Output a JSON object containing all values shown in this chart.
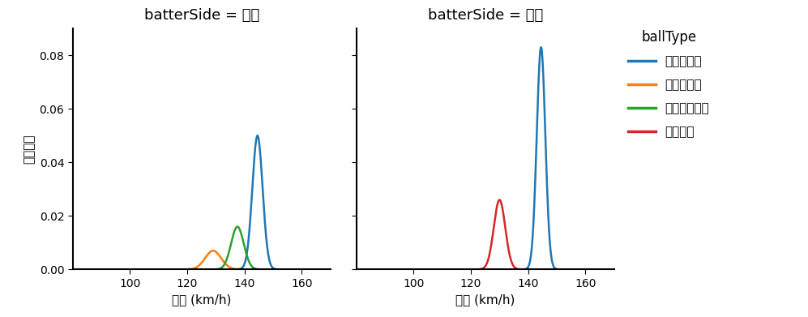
{
  "title_right": "batterSide = 右打",
  "title_left": "batterSide = 左打",
  "ylabel": "確率密度",
  "xlabel": "球速 (km/h)",
  "legend_title": "ballType",
  "legend_labels": [
    "ストレート",
    "スライダー",
    "カットボール",
    "フォーク"
  ],
  "colors": [
    "#1f77b4",
    "#ff7f0e",
    "#2ca02c",
    "#d62728"
  ],
  "xlim": [
    80,
    170
  ],
  "ylim": [
    0,
    0.09
  ],
  "xticks": [
    100,
    120,
    140,
    160
  ],
  "yticks": [
    0.0,
    0.02,
    0.04,
    0.06,
    0.08
  ],
  "right_curves": [
    {
      "mean": 144.5,
      "std": 1.8,
      "peak": 0.05,
      "color_idx": 0
    },
    {
      "mean": 129.0,
      "std": 2.8,
      "peak": 0.007,
      "color_idx": 1
    },
    {
      "mean": 137.5,
      "std": 2.2,
      "peak": 0.016,
      "color_idx": 2
    }
  ],
  "left_curves": [
    {
      "mean": 144.5,
      "std": 1.5,
      "peak": 0.083,
      "color_idx": 0
    },
    {
      "mean": 130.0,
      "std": 2.0,
      "peak": 0.026,
      "color_idx": 3
    }
  ],
  "background_color": "#ffffff",
  "spine_color": "#000000",
  "linewidth": 1.8,
  "figsize": [
    9.97,
    3.91
  ],
  "dpi": 100
}
